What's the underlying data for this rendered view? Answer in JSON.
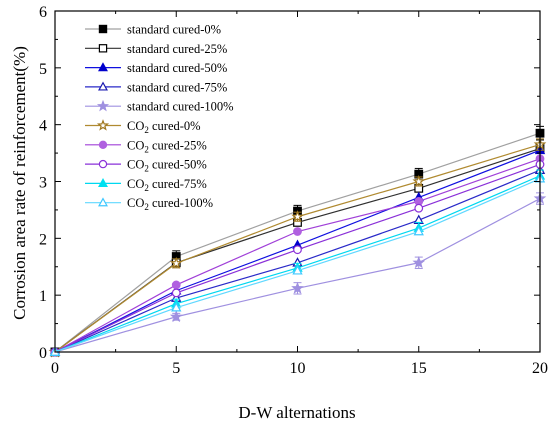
{
  "chart_data": {
    "type": "line",
    "title": "",
    "xlabel": "D-W alternations",
    "ylabel": "Corrosion area rate of reinforcement(%)",
    "xlim": [
      0,
      20
    ],
    "ylim": [
      0,
      6
    ],
    "x": [
      0,
      5,
      10,
      15,
      20
    ],
    "xticks": [
      "0",
      "5",
      "10",
      "15",
      "20"
    ],
    "yticks": [
      "0",
      "1",
      "2",
      "3",
      "4",
      "5",
      "6"
    ],
    "grid": false,
    "legend_position": "top-left",
    "series": [
      {
        "name": "standard cured-0%",
        "label_prefix": "standard cured",
        "label_suffix": "-0%",
        "color": "#a0a0a0",
        "marker": "square-filled",
        "marker_color": "#000000",
        "values": [
          0,
          1.68,
          2.48,
          3.13,
          3.85
        ]
      },
      {
        "name": "standard cured-25%",
        "label_prefix": "standard cured",
        "label_suffix": "-25%",
        "color": "#303030",
        "marker": "square-open",
        "marker_color": "#000000",
        "values": [
          0,
          1.57,
          2.28,
          2.88,
          3.58
        ]
      },
      {
        "name": "standard cured-50%",
        "label_prefix": "standard cured",
        "label_suffix": "-50%",
        "color": "#1010e0",
        "marker": "triangle-filled",
        "marker_color": "#0000cc",
        "values": [
          0,
          1.08,
          1.88,
          2.72,
          3.55
        ]
      },
      {
        "name": "standard cured-75%",
        "label_prefix": "standard cured",
        "label_suffix": "-75%",
        "color": "#2a2ac8",
        "marker": "triangle-open",
        "marker_color": "#1a1ab0",
        "values": [
          0,
          0.95,
          1.57,
          2.32,
          3.2
        ]
      },
      {
        "name": "standard cured-100%",
        "label_prefix": "standard cured",
        "label_suffix": "-100%",
        "color": "#9f90e0",
        "marker": "star-filled",
        "marker_color": "#9f90e0",
        "values": [
          0,
          0.62,
          1.12,
          1.57,
          2.7
        ]
      },
      {
        "name": "CO2 cured-0%",
        "label_prefix": "CO",
        "label_sub": "2",
        "label_mid": " cured",
        "label_suffix": "-0%",
        "color": "#b08a30",
        "marker": "star-open",
        "marker_color": "#a07820",
        "values": [
          0,
          1.56,
          2.38,
          3.0,
          3.65
        ]
      },
      {
        "name": "CO2 cured-25%",
        "label_prefix": "CO",
        "label_sub": "2",
        "label_mid": " cured",
        "label_suffix": "-25%",
        "color": "#a040d8",
        "marker": "circle-filled",
        "marker_color": "#b060e0",
        "values": [
          0,
          1.18,
          2.12,
          2.65,
          3.4
        ]
      },
      {
        "name": "CO2 cured-50%",
        "label_prefix": "CO",
        "label_sub": "2",
        "label_mid": " cured",
        "label_suffix": "-50%",
        "color": "#8a30d8",
        "marker": "circle-open",
        "marker_color": "#8a30d8",
        "values": [
          0,
          1.04,
          1.8,
          2.53,
          3.3
        ]
      },
      {
        "name": "CO2 cured-75%",
        "label_prefix": "CO",
        "label_sub": "2",
        "label_mid": " cured",
        "label_suffix": "-75%",
        "color": "#00d8f0",
        "marker": "triangle-filled",
        "marker_color": "#00e0f0",
        "values": [
          0,
          0.85,
          1.48,
          2.18,
          3.1
        ]
      },
      {
        "name": "CO2 cured-100%",
        "label_prefix": "CO",
        "label_sub": "2",
        "label_mid": " cured",
        "label_suffix": "-100%",
        "color": "#60d8ff",
        "marker": "triangle-open",
        "marker_color": "#40c8ff",
        "values": [
          0,
          0.78,
          1.43,
          2.12,
          3.05
        ]
      }
    ],
    "error_bars": {
      "standard cured-0%": [
        0,
        0.1,
        0.1,
        0.1,
        0.12
      ],
      "standard cured-100%": [
        0,
        0.06,
        0.1,
        0.1,
        0.1
      ],
      "CO2 cured-0%": [
        0,
        0.08,
        0.08,
        0.08,
        0.1
      ],
      "CO2 cured-75%": [
        0,
        0.08,
        0.08,
        0.1,
        0.1
      ]
    }
  }
}
